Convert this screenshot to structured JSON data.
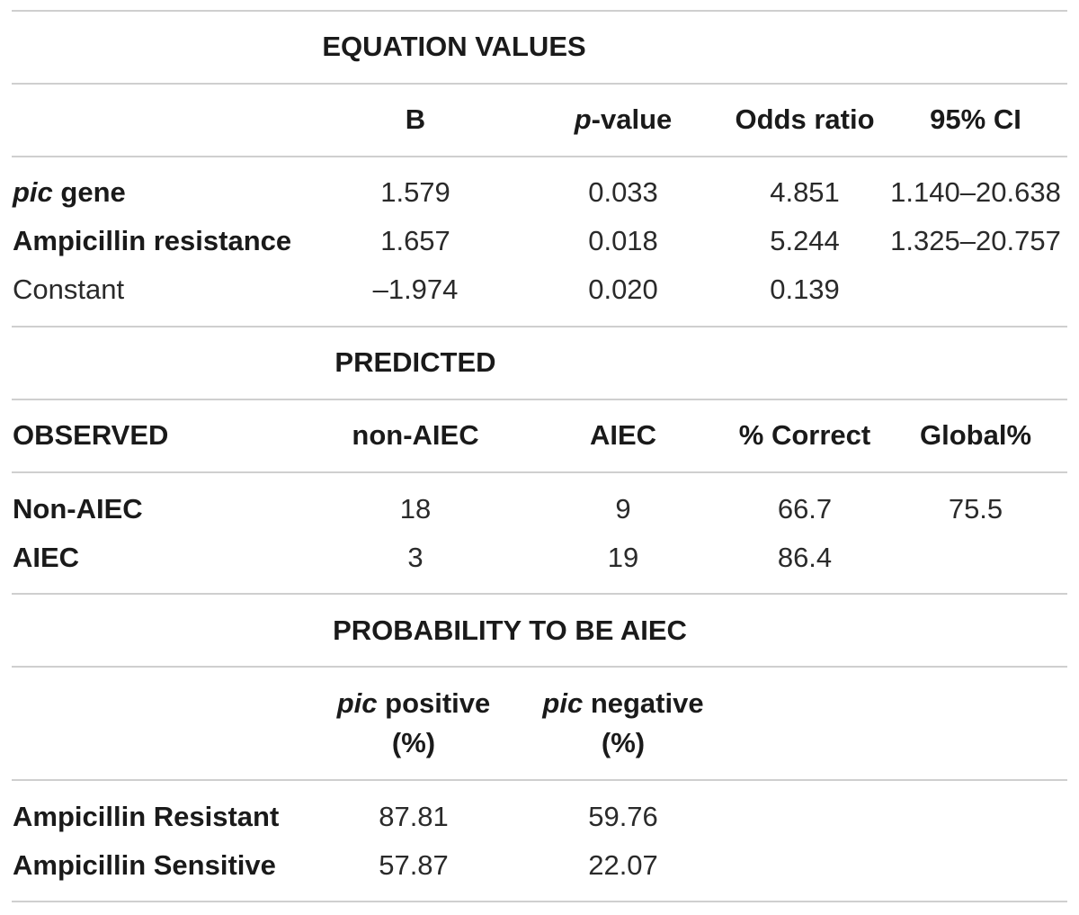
{
  "equation": {
    "title": "EQUATION VALUES",
    "headers": {
      "b": "B",
      "p_italic": "p",
      "p_rest": "-value",
      "odds": "Odds ratio",
      "ci": "95% CI"
    },
    "rows": [
      {
        "label_italic": "pic",
        "label_rest": " gene",
        "b": "1.579",
        "p": "0.033",
        "odds": "4.851",
        "ci": "1.140–20.638"
      },
      {
        "label": "Ampicillin resistance",
        "b": "1.657",
        "p": "0.018",
        "odds": "5.244",
        "ci": "1.325–20.757"
      },
      {
        "label": "Constant",
        "b": "–1.974",
        "p": "0.020",
        "odds": "0.139",
        "ci": ""
      }
    ]
  },
  "predicted": {
    "title": "PREDICTED",
    "headers": {
      "observed": "OBSERVED",
      "non_aiec": "non-AIEC",
      "aiec": "AIEC",
      "correct": "% Correct",
      "global": "Global%"
    },
    "rows": [
      {
        "label": "Non-AIEC",
        "non_aiec": "18",
        "aiec": "9",
        "correct": "66.7",
        "global": "75.5"
      },
      {
        "label": "AIEC",
        "non_aiec": "3",
        "aiec": "19",
        "correct": "86.4",
        "global": ""
      }
    ]
  },
  "probability": {
    "title": "PROBABILITY TO BE AIEC",
    "headers": {
      "pos_italic": "pic",
      "pos_rest": " positive",
      "pos_unit": "(%)",
      "neg_italic": "pic",
      "neg_rest": " negative",
      "neg_unit": "(%)"
    },
    "rows": [
      {
        "label": "Ampicillin Resistant",
        "pos": "87.81",
        "neg": "59.76"
      },
      {
        "label": "Ampicillin Sensitive",
        "pos": "57.87",
        "neg": "22.07"
      }
    ]
  }
}
